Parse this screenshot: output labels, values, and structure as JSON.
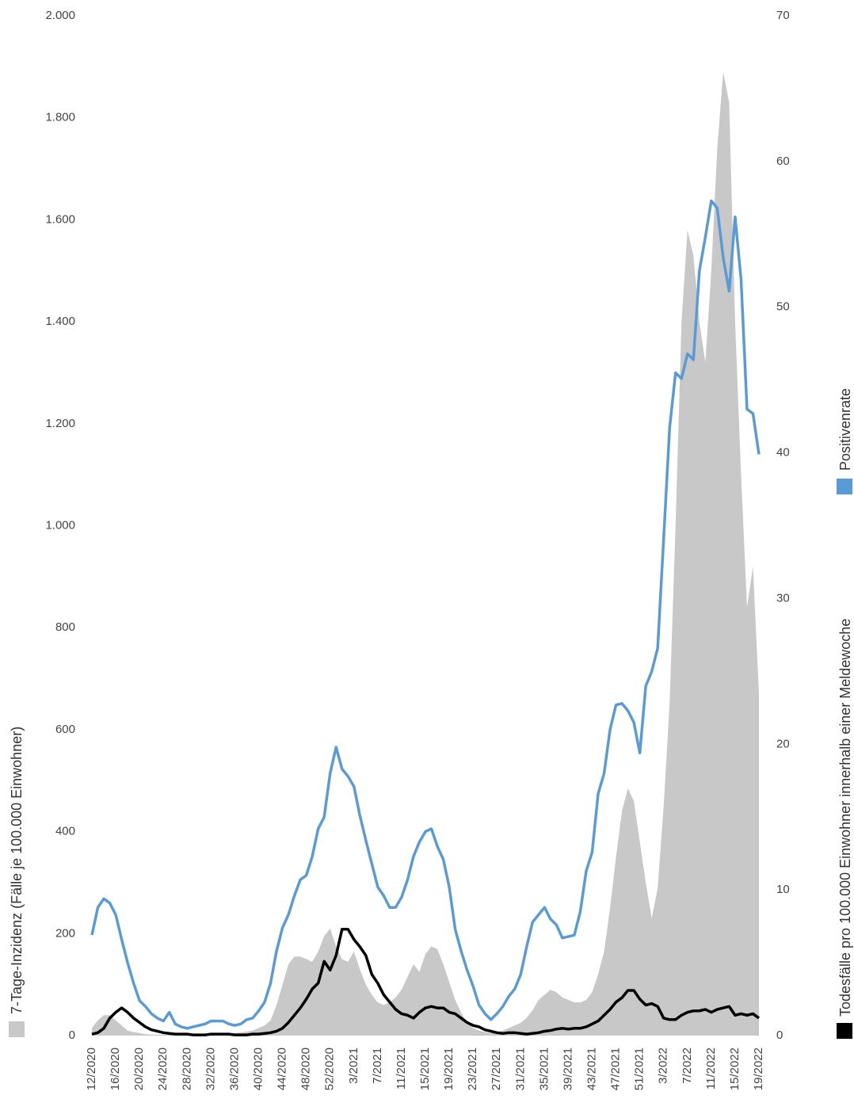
{
  "chart_data": {
    "type": "line",
    "categories": [
      "12/2020",
      null,
      null,
      null,
      "16/2020",
      null,
      null,
      null,
      "20/2020",
      null,
      null,
      null,
      "24/2020",
      null,
      null,
      null,
      "28/2020",
      null,
      null,
      null,
      "32/2020",
      null,
      null,
      null,
      "36/2020",
      null,
      null,
      null,
      "40/2020",
      null,
      null,
      null,
      "44/2020",
      null,
      null,
      null,
      "48/2020",
      null,
      null,
      null,
      "52/2020",
      null,
      null,
      null,
      "3/2021",
      null,
      null,
      null,
      "7/2021",
      null,
      null,
      null,
      "11/2021",
      null,
      null,
      null,
      "15/2021",
      null,
      null,
      null,
      "19/2021",
      null,
      null,
      null,
      "23/2021",
      null,
      null,
      null,
      "27/2021",
      null,
      null,
      null,
      "31/2021",
      null,
      null,
      null,
      "35/2021",
      null,
      null,
      null,
      "39/2021",
      null,
      null,
      null,
      "43/2021",
      null,
      null,
      null,
      "47/2021",
      null,
      null,
      null,
      "51/2021",
      null,
      null,
      null,
      "3/2022",
      null,
      null,
      null,
      "7/2022",
      null,
      null,
      null,
      "11/2022",
      null,
      null,
      null,
      "15/2022",
      null,
      null,
      null,
      "19/2022"
    ],
    "series": [
      {
        "name": "7-Tage-Inzidenz (Fälle je 100.000 Einwohner)",
        "type": "area",
        "color": "#c8c8c8",
        "axis": "y",
        "values": [
          15,
          30,
          40,
          40,
          30,
          20,
          10,
          7,
          5,
          3,
          2,
          2,
          2,
          2,
          2,
          2,
          2,
          3,
          3,
          3,
          3,
          4,
          4,
          5,
          5,
          6,
          8,
          10,
          15,
          20,
          30,
          60,
          100,
          140,
          155,
          155,
          150,
          145,
          165,
          195,
          210,
          175,
          150,
          145,
          165,
          130,
          100,
          80,
          65,
          60,
          65,
          75,
          90,
          115,
          140,
          125,
          160,
          175,
          170,
          140,
          105,
          70,
          45,
          25,
          15,
          10,
          7,
          5,
          7,
          10,
          15,
          20,
          25,
          35,
          50,
          70,
          80,
          90,
          85,
          75,
          70,
          65,
          65,
          70,
          85,
          120,
          165,
          250,
          350,
          440,
          485,
          460,
          380,
          300,
          230,
          290,
          450,
          650,
          1000,
          1400,
          1580,
          1530,
          1400,
          1320,
          1500,
          1740,
          1890,
          1830,
          1400,
          1100,
          840,
          920,
          670
        ]
      },
      {
        "name": "Positivenrate",
        "type": "line",
        "color": "#5b9bd5",
        "axis": "y2",
        "values": [
          6.9,
          8.8,
          9.4,
          9.1,
          8.3,
          6.6,
          5.0,
          3.6,
          2.4,
          2.0,
          1.5,
          1.2,
          1.0,
          1.6,
          0.8,
          0.6,
          0.5,
          0.6,
          0.7,
          0.8,
          1.0,
          1.0,
          1.0,
          0.8,
          0.7,
          0.8,
          1.1,
          1.2,
          1.7,
          2.3,
          3.6,
          5.8,
          7.4,
          8.3,
          9.6,
          10.7,
          11.0,
          12.3,
          14.2,
          15.0,
          18.0,
          19.8,
          18.3,
          17.8,
          17.1,
          15.1,
          13.4,
          11.8,
          10.2,
          9.6,
          8.8,
          8.8,
          9.5,
          10.7,
          12.3,
          13.3,
          14.0,
          14.2,
          13.0,
          12.1,
          10.2,
          7.3,
          5.8,
          4.5,
          3.4,
          2.1,
          1.5,
          1.1,
          1.5,
          2.0,
          2.7,
          3.2,
          4.2,
          6.1,
          7.8,
          8.3,
          8.8,
          8.0,
          7.6,
          6.7,
          6.8,
          6.9,
          8.5,
          11.3,
          12.6,
          16.6,
          18.0,
          21.0,
          22.7,
          22.8,
          22.3,
          21.5,
          19.4,
          24.0,
          25.0,
          26.6,
          34.1,
          41.7,
          45.5,
          45.1,
          46.8,
          46.4,
          52.5,
          54.8,
          57.3,
          56.8,
          53.4,
          51.1,
          56.2,
          51.9,
          43.0,
          42.7,
          39.9
        ]
      },
      {
        "name": "Todesfälle pro 100.000 Einwohner innerhalb einer Meldewoche",
        "type": "line",
        "color": "#000000",
        "axis": "y2",
        "values": [
          0.1,
          0.2,
          0.5,
          1.2,
          1.6,
          1.9,
          1.6,
          1.2,
          0.9,
          0.6,
          0.4,
          0.3,
          0.2,
          0.15,
          0.1,
          0.1,
          0.1,
          0.05,
          0.05,
          0.05,
          0.1,
          0.1,
          0.1,
          0.1,
          0.05,
          0.05,
          0.05,
          0.1,
          0.1,
          0.15,
          0.2,
          0.3,
          0.5,
          0.9,
          1.4,
          1.9,
          2.5,
          3.2,
          3.6,
          5.1,
          4.5,
          5.5,
          7.3,
          7.3,
          6.6,
          6.1,
          5.5,
          4.2,
          3.6,
          2.8,
          2.3,
          1.8,
          1.5,
          1.4,
          1.2,
          1.6,
          1.9,
          2.0,
          1.9,
          1.9,
          1.6,
          1.5,
          1.2,
          0.9,
          0.7,
          0.6,
          0.4,
          0.3,
          0.2,
          0.15,
          0.2,
          0.2,
          0.15,
          0.1,
          0.15,
          0.2,
          0.3,
          0.35,
          0.45,
          0.5,
          0.45,
          0.5,
          0.5,
          0.6,
          0.8,
          1.0,
          1.4,
          1.8,
          2.3,
          2.6,
          3.1,
          3.1,
          2.5,
          2.1,
          2.2,
          2.0,
          1.2,
          1.1,
          1.1,
          1.4,
          1.6,
          1.7,
          1.7,
          1.8,
          1.6,
          1.8,
          1.9,
          2.0,
          1.4,
          1.5,
          1.4,
          1.5,
          1.2
        ]
      }
    ],
    "ylim": [
      0,
      2000
    ],
    "yticks": [
      0,
      200,
      400,
      600,
      800,
      {
        "value": 1000,
        "label": "1.000"
      },
      {
        "value": 1200,
        "label": "1.200"
      },
      {
        "value": 1400,
        "label": "1.400"
      },
      {
        "value": 1600,
        "label": "1.600"
      },
      {
        "value": 1800,
        "label": "1.800"
      },
      {
        "value": 2000,
        "label": "2.000"
      }
    ],
    "y2lim": [
      0,
      70
    ],
    "y2ticks": [
      0,
      10,
      20,
      30,
      40,
      50,
      60,
      70
    ],
    "grid": false
  }
}
